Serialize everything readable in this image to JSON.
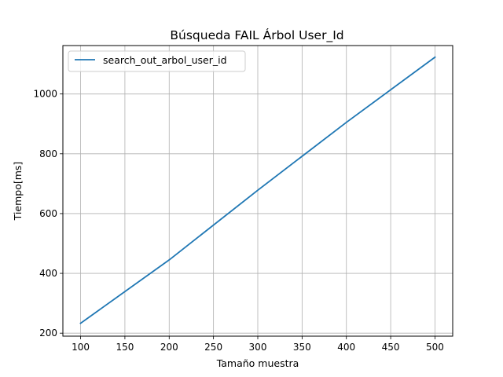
{
  "chart_data": {
    "type": "line",
    "title": "Búsqueda FAIL Árbol User_Id",
    "xlabel": "Tamaño muestra",
    "ylabel": "Tiempo[ms]",
    "xlim": [
      80,
      520
    ],
    "ylim": [
      190,
      1162
    ],
    "x_ticks": [
      100,
      150,
      200,
      250,
      300,
      350,
      400,
      450,
      500
    ],
    "y_ticks": [
      200,
      400,
      600,
      800,
      1000
    ],
    "grid": true,
    "legend_position": "top-left",
    "series": [
      {
        "name": "search_out_arbol_user_id",
        "color": "#1f77b4",
        "x": [
          100,
          200,
          300,
          400,
          500
        ],
        "y": [
          233,
          445,
          678,
          905,
          1123
        ]
      }
    ]
  }
}
